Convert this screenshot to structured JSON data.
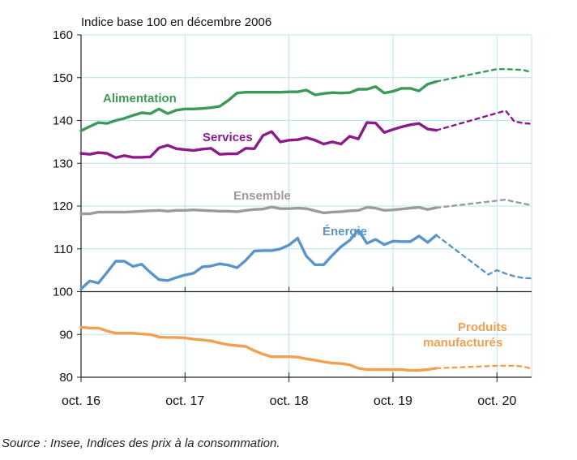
{
  "chart_data": {
    "type": "line",
    "title": "Indice base 100 en décembre 2006",
    "x_ticks": [
      "oct. 16",
      "oct. 17",
      "oct. 18",
      "oct. 19",
      "oct. 20"
    ],
    "y_ticks": [
      80,
      90,
      100,
      110,
      120,
      130,
      140,
      150,
      160
    ],
    "ylim": [
      80,
      160
    ],
    "y_axis_break": true,
    "grid": true,
    "forecast_style": "dotted after observed period",
    "series": [
      {
        "name": "Alimentation",
        "color": "#3a9a5a",
        "observed": [
          [
            0,
            137.6
          ],
          [
            1,
            138.6
          ],
          [
            2,
            139.5
          ],
          [
            3,
            139.3
          ],
          [
            4,
            140.0
          ],
          [
            5,
            140.5
          ],
          [
            6,
            141.2
          ],
          [
            7,
            141.8
          ],
          [
            8,
            141.6
          ],
          [
            9,
            142.7
          ],
          [
            10,
            141.6
          ],
          [
            11,
            142.4
          ],
          [
            12,
            142.7
          ],
          [
            13,
            142.7
          ],
          [
            14,
            142.8
          ],
          [
            15,
            143.0
          ],
          [
            16,
            143.3
          ],
          [
            17,
            144.7
          ],
          [
            18,
            146.4
          ],
          [
            19,
            146.6
          ],
          [
            20,
            146.6
          ],
          [
            21,
            146.6
          ],
          [
            22,
            146.6
          ],
          [
            23,
            146.6
          ],
          [
            24,
            146.7
          ],
          [
            25,
            146.7
          ],
          [
            26,
            147.1
          ],
          [
            27,
            146.0
          ],
          [
            28,
            146.3
          ],
          [
            29,
            146.5
          ],
          [
            30,
            146.4
          ],
          [
            31,
            146.5
          ],
          [
            32,
            147.3
          ],
          [
            33,
            147.3
          ],
          [
            34,
            147.9
          ],
          [
            35,
            146.4
          ],
          [
            36,
            146.8
          ],
          [
            37,
            147.5
          ],
          [
            38,
            147.5
          ],
          [
            39,
            146.9
          ],
          [
            40,
            148.5
          ],
          [
            41,
            149.1
          ]
        ],
        "forecast": [
          [
            41,
            149.1
          ],
          [
            48,
            152.0
          ],
          [
            49,
            152.0
          ],
          [
            50,
            151.9
          ],
          [
            51,
            151.8
          ],
          [
            52,
            151.3
          ]
        ]
      },
      {
        "name": "Services",
        "color": "#8b1a8b",
        "observed": [
          [
            0,
            132.3
          ],
          [
            1,
            132.1
          ],
          [
            2,
            132.5
          ],
          [
            3,
            132.3
          ],
          [
            4,
            131.3
          ],
          [
            5,
            131.8
          ],
          [
            6,
            131.4
          ],
          [
            7,
            131.4
          ],
          [
            8,
            131.5
          ],
          [
            9,
            133.6
          ],
          [
            10,
            134.2
          ],
          [
            11,
            133.4
          ],
          [
            12,
            133.2
          ],
          [
            13,
            133.0
          ],
          [
            14,
            133.3
          ],
          [
            15,
            133.5
          ],
          [
            16,
            132.1
          ],
          [
            17,
            132.2
          ],
          [
            18,
            132.2
          ],
          [
            19,
            133.5
          ],
          [
            20,
            133.4
          ],
          [
            21,
            136.5
          ],
          [
            22,
            137.4
          ],
          [
            23,
            135.0
          ],
          [
            24,
            135.4
          ],
          [
            25,
            135.5
          ],
          [
            26,
            136.0
          ],
          [
            27,
            135.4
          ],
          [
            28,
            134.5
          ],
          [
            29,
            135.0
          ],
          [
            30,
            134.5
          ],
          [
            31,
            136.3
          ],
          [
            32,
            135.7
          ],
          [
            33,
            139.5
          ],
          [
            34,
            139.4
          ],
          [
            35,
            137.2
          ],
          [
            36,
            137.9
          ],
          [
            37,
            138.5
          ],
          [
            38,
            139.0
          ],
          [
            39,
            139.3
          ],
          [
            40,
            138.0
          ],
          [
            41,
            137.7
          ]
        ],
        "forecast": [
          [
            41,
            137.7
          ],
          [
            49,
            142.3
          ],
          [
            50,
            139.8
          ],
          [
            51,
            139.4
          ],
          [
            52,
            139.2
          ]
        ]
      },
      {
        "name": "Ensemble",
        "color": "#9b9b9b",
        "observed": [
          [
            0,
            118.2
          ],
          [
            1,
            118.2
          ],
          [
            2,
            118.6
          ],
          [
            3,
            118.6
          ],
          [
            4,
            118.6
          ],
          [
            5,
            118.6
          ],
          [
            6,
            118.7
          ],
          [
            7,
            118.8
          ],
          [
            8,
            118.9
          ],
          [
            9,
            119.0
          ],
          [
            10,
            118.8
          ],
          [
            11,
            119.0
          ],
          [
            12,
            119.0
          ],
          [
            13,
            119.1
          ],
          [
            14,
            119.0
          ],
          [
            15,
            118.9
          ],
          [
            16,
            118.8
          ],
          [
            17,
            118.8
          ],
          [
            18,
            118.7
          ],
          [
            19,
            119.0
          ],
          [
            20,
            119.2
          ],
          [
            21,
            119.3
          ],
          [
            22,
            119.8
          ],
          [
            23,
            119.4
          ],
          [
            24,
            119.4
          ],
          [
            25,
            119.5
          ],
          [
            26,
            119.4
          ],
          [
            27,
            118.9
          ],
          [
            28,
            118.4
          ],
          [
            29,
            118.6
          ],
          [
            30,
            118.7
          ],
          [
            31,
            118.9
          ],
          [
            32,
            119.0
          ],
          [
            33,
            119.7
          ],
          [
            34,
            119.5
          ],
          [
            35,
            119.0
          ],
          [
            36,
            119.1
          ],
          [
            37,
            119.3
          ],
          [
            38,
            119.5
          ],
          [
            39,
            119.7
          ],
          [
            40,
            119.2
          ],
          [
            41,
            119.6
          ]
        ],
        "forecast": [
          [
            41,
            119.6
          ],
          [
            49,
            121.5
          ],
          [
            50,
            121.0
          ],
          [
            51,
            120.6
          ],
          [
            52,
            120.2
          ]
        ]
      },
      {
        "name": "Énergie",
        "color": "#5a94c8",
        "observed": [
          [
            0,
            100.6
          ],
          [
            1,
            102.5
          ],
          [
            2,
            102.0
          ],
          [
            3,
            104.5
          ],
          [
            4,
            107.1
          ],
          [
            5,
            107.1
          ],
          [
            6,
            105.9
          ],
          [
            7,
            106.4
          ],
          [
            8,
            104.5
          ],
          [
            9,
            102.8
          ],
          [
            10,
            102.6
          ],
          [
            11,
            103.3
          ],
          [
            12,
            103.9
          ],
          [
            13,
            104.3
          ],
          [
            14,
            105.8
          ],
          [
            15,
            106.0
          ],
          [
            16,
            106.5
          ],
          [
            17,
            106.2
          ],
          [
            18,
            105.6
          ],
          [
            19,
            107.3
          ],
          [
            20,
            109.5
          ],
          [
            21,
            109.6
          ],
          [
            22,
            109.6
          ],
          [
            23,
            110.0
          ],
          [
            24,
            110.9
          ],
          [
            25,
            112.5
          ],
          [
            26,
            108.3
          ],
          [
            27,
            106.3
          ],
          [
            28,
            106.3
          ],
          [
            29,
            108.5
          ],
          [
            30,
            110.5
          ],
          [
            31,
            112.0
          ],
          [
            32,
            114.4
          ],
          [
            33,
            111.3
          ],
          [
            34,
            112.2
          ],
          [
            35,
            111.0
          ],
          [
            36,
            111.8
          ],
          [
            37,
            111.7
          ],
          [
            38,
            111.7
          ],
          [
            39,
            113.0
          ],
          [
            40,
            111.5
          ],
          [
            41,
            113.2
          ]
        ],
        "forecast": [
          [
            41,
            113.2
          ],
          [
            47,
            104.0
          ],
          [
            48,
            105.0
          ],
          [
            49,
            104.2
          ],
          [
            50,
            103.6
          ],
          [
            51,
            103.2
          ],
          [
            52,
            103.1
          ]
        ]
      },
      {
        "name": "Produits manufacturés",
        "color": "#f0a050",
        "observed": [
          [
            0,
            91.7
          ],
          [
            1,
            91.5
          ],
          [
            2,
            91.5
          ],
          [
            3,
            90.8
          ],
          [
            4,
            90.3
          ],
          [
            5,
            90.3
          ],
          [
            6,
            90.3
          ],
          [
            7,
            90.1
          ],
          [
            8,
            90.0
          ],
          [
            9,
            89.4
          ],
          [
            10,
            89.3
          ],
          [
            11,
            89.3
          ],
          [
            12,
            89.2
          ],
          [
            13,
            88.9
          ],
          [
            14,
            88.7
          ],
          [
            15,
            88.5
          ],
          [
            16,
            88.0
          ],
          [
            17,
            87.6
          ],
          [
            18,
            87.4
          ],
          [
            19,
            87.2
          ],
          [
            20,
            86.2
          ],
          [
            21,
            85.4
          ],
          [
            22,
            84.8
          ],
          [
            23,
            84.8
          ],
          [
            24,
            84.8
          ],
          [
            25,
            84.7
          ],
          [
            26,
            84.3
          ],
          [
            27,
            84.0
          ],
          [
            28,
            83.6
          ],
          [
            29,
            83.3
          ],
          [
            30,
            83.2
          ],
          [
            31,
            82.9
          ],
          [
            32,
            82.1
          ],
          [
            33,
            81.8
          ],
          [
            34,
            81.8
          ],
          [
            35,
            81.8
          ],
          [
            36,
            81.8
          ],
          [
            37,
            81.8
          ],
          [
            38,
            81.6
          ],
          [
            39,
            81.6
          ],
          [
            40,
            81.8
          ],
          [
            41,
            82.1
          ]
        ],
        "forecast": [
          [
            41,
            82.1
          ],
          [
            48,
            82.7
          ],
          [
            49,
            82.7
          ],
          [
            50,
            82.7
          ],
          [
            51,
            82.5
          ],
          [
            52,
            82.0
          ]
        ]
      }
    ]
  },
  "source": "Source : Insee, Indices des prix à la consommation."
}
